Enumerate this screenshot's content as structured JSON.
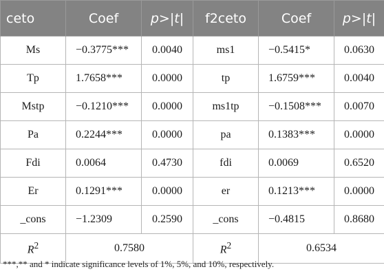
{
  "table": {
    "headers": [
      "ceto",
      "Coef",
      "p>|t|",
      "f2ceto",
      "Coef",
      "p>|t|"
    ],
    "rows": [
      [
        "Ms",
        "−0.3775***",
        "0.0040",
        "ms1",
        "−0.5415*",
        "0.0630"
      ],
      [
        "Tp",
        "1.7658***",
        "0.0000",
        "tp",
        "1.6759***",
        "0.0040"
      ],
      [
        "Mstp",
        "−0.1210***",
        "0.0000",
        "ms1tp",
        "−0.1508***",
        "0.0070"
      ],
      [
        "Pa",
        "0.2244***",
        "0.0000",
        "pa",
        "0.1383***",
        "0.0000"
      ],
      [
        "Fdi",
        "0.0064",
        "0.4730",
        "fdi",
        "0.0069",
        "0.6520"
      ],
      [
        "Er",
        "0.1291***",
        "0.0000",
        "er",
        "0.1213***",
        "0.0000"
      ],
      [
        "_cons",
        "−1.2309",
        "0.2590",
        "_cons",
        "−0.4815",
        "0.8680"
      ]
    ],
    "r2": {
      "label_base": "R",
      "label_sup": "2",
      "value_left": "0.7580",
      "value_right": "0.6534"
    }
  },
  "note": "***,** and * indicate significance levels of 1%, 5%, and 10%, respectively."
}
